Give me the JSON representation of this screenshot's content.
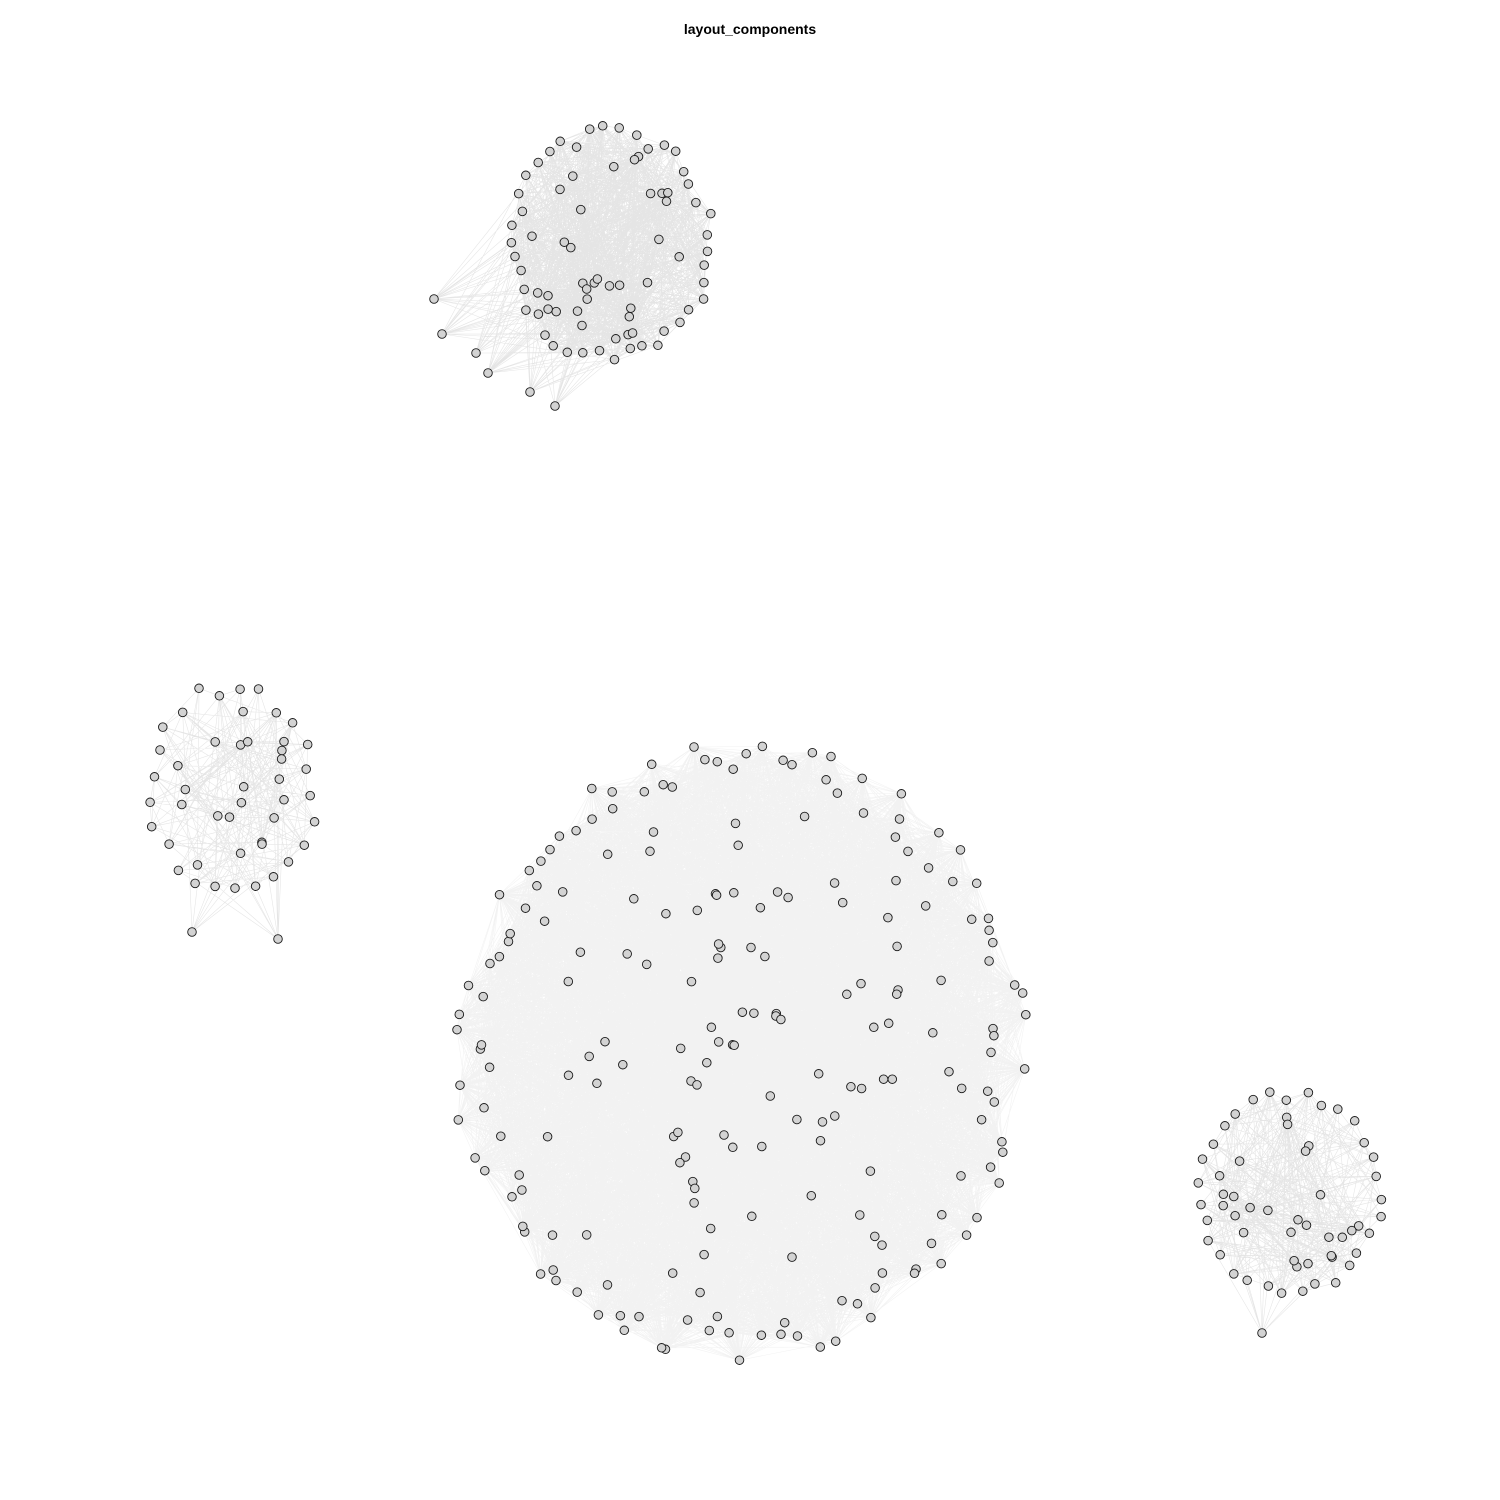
{
  "title": "layout_components",
  "style": {
    "background": "#ffffff",
    "node_fill": "#d3d3d3",
    "node_stroke": "#1a1a1a",
    "edge_color": "#000000"
  },
  "components": [
    {
      "id": "top-cluster",
      "nodes": 82,
      "density": "very dense",
      "outliers": 6
    },
    {
      "id": "left-cluster",
      "nodes": 48,
      "density": "sparse",
      "outliers": 2
    },
    {
      "id": "center-cluster",
      "nodes": 210,
      "density": "extremely dense",
      "outliers": 0
    },
    {
      "id": "right-cluster",
      "nodes": 58,
      "density": "sparse",
      "outliers": 1
    }
  ]
}
